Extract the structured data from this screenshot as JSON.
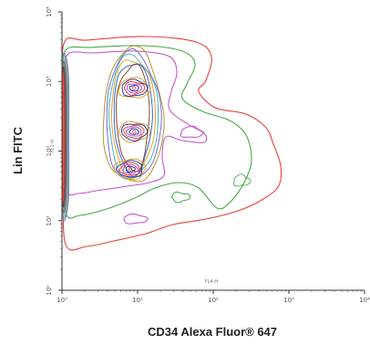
{
  "chart_data": {
    "type": "contour",
    "xlabel": "CD34 Alexa Fluor® 647",
    "ylabel": "Lin FITC",
    "x_inner_label": "FL4-H",
    "y_inner_label": "FL1-H",
    "x_scale": "log",
    "y_scale": "log",
    "xlim": [
      1,
      10000
    ],
    "ylim": [
      1,
      10000
    ],
    "x_tick_labels": [
      "10⁰",
      "10¹",
      "10²",
      "10³",
      "10⁴"
    ],
    "y_tick_labels": [
      "10⁰",
      "10¹",
      "10²",
      "10³",
      "10⁴"
    ],
    "x_tick_values": [
      1,
      10,
      100,
      1000,
      10000
    ],
    "y_tick_values": [
      1,
      10,
      100,
      1000,
      10000
    ],
    "grid": false,
    "populations": [
      {
        "x": 1.0,
        "y": 150,
        "note": "Lin+ CD34- (left edge)"
      },
      {
        "x": 9.0,
        "y": 800,
        "note": "upper peak"
      },
      {
        "x": 9.0,
        "y": 190,
        "note": "middle peak"
      },
      {
        "x": 8.0,
        "y": 55,
        "note": "lower peak"
      }
    ],
    "contour_colors": [
      "#e8413a",
      "#46a846",
      "#c24bc8",
      "#3fb7c9",
      "#7a6bd6",
      "#e0a02a",
      "#b4962c",
      "#2f6bd0",
      "#8a4a2a",
      "#1f3fa8"
    ]
  }
}
